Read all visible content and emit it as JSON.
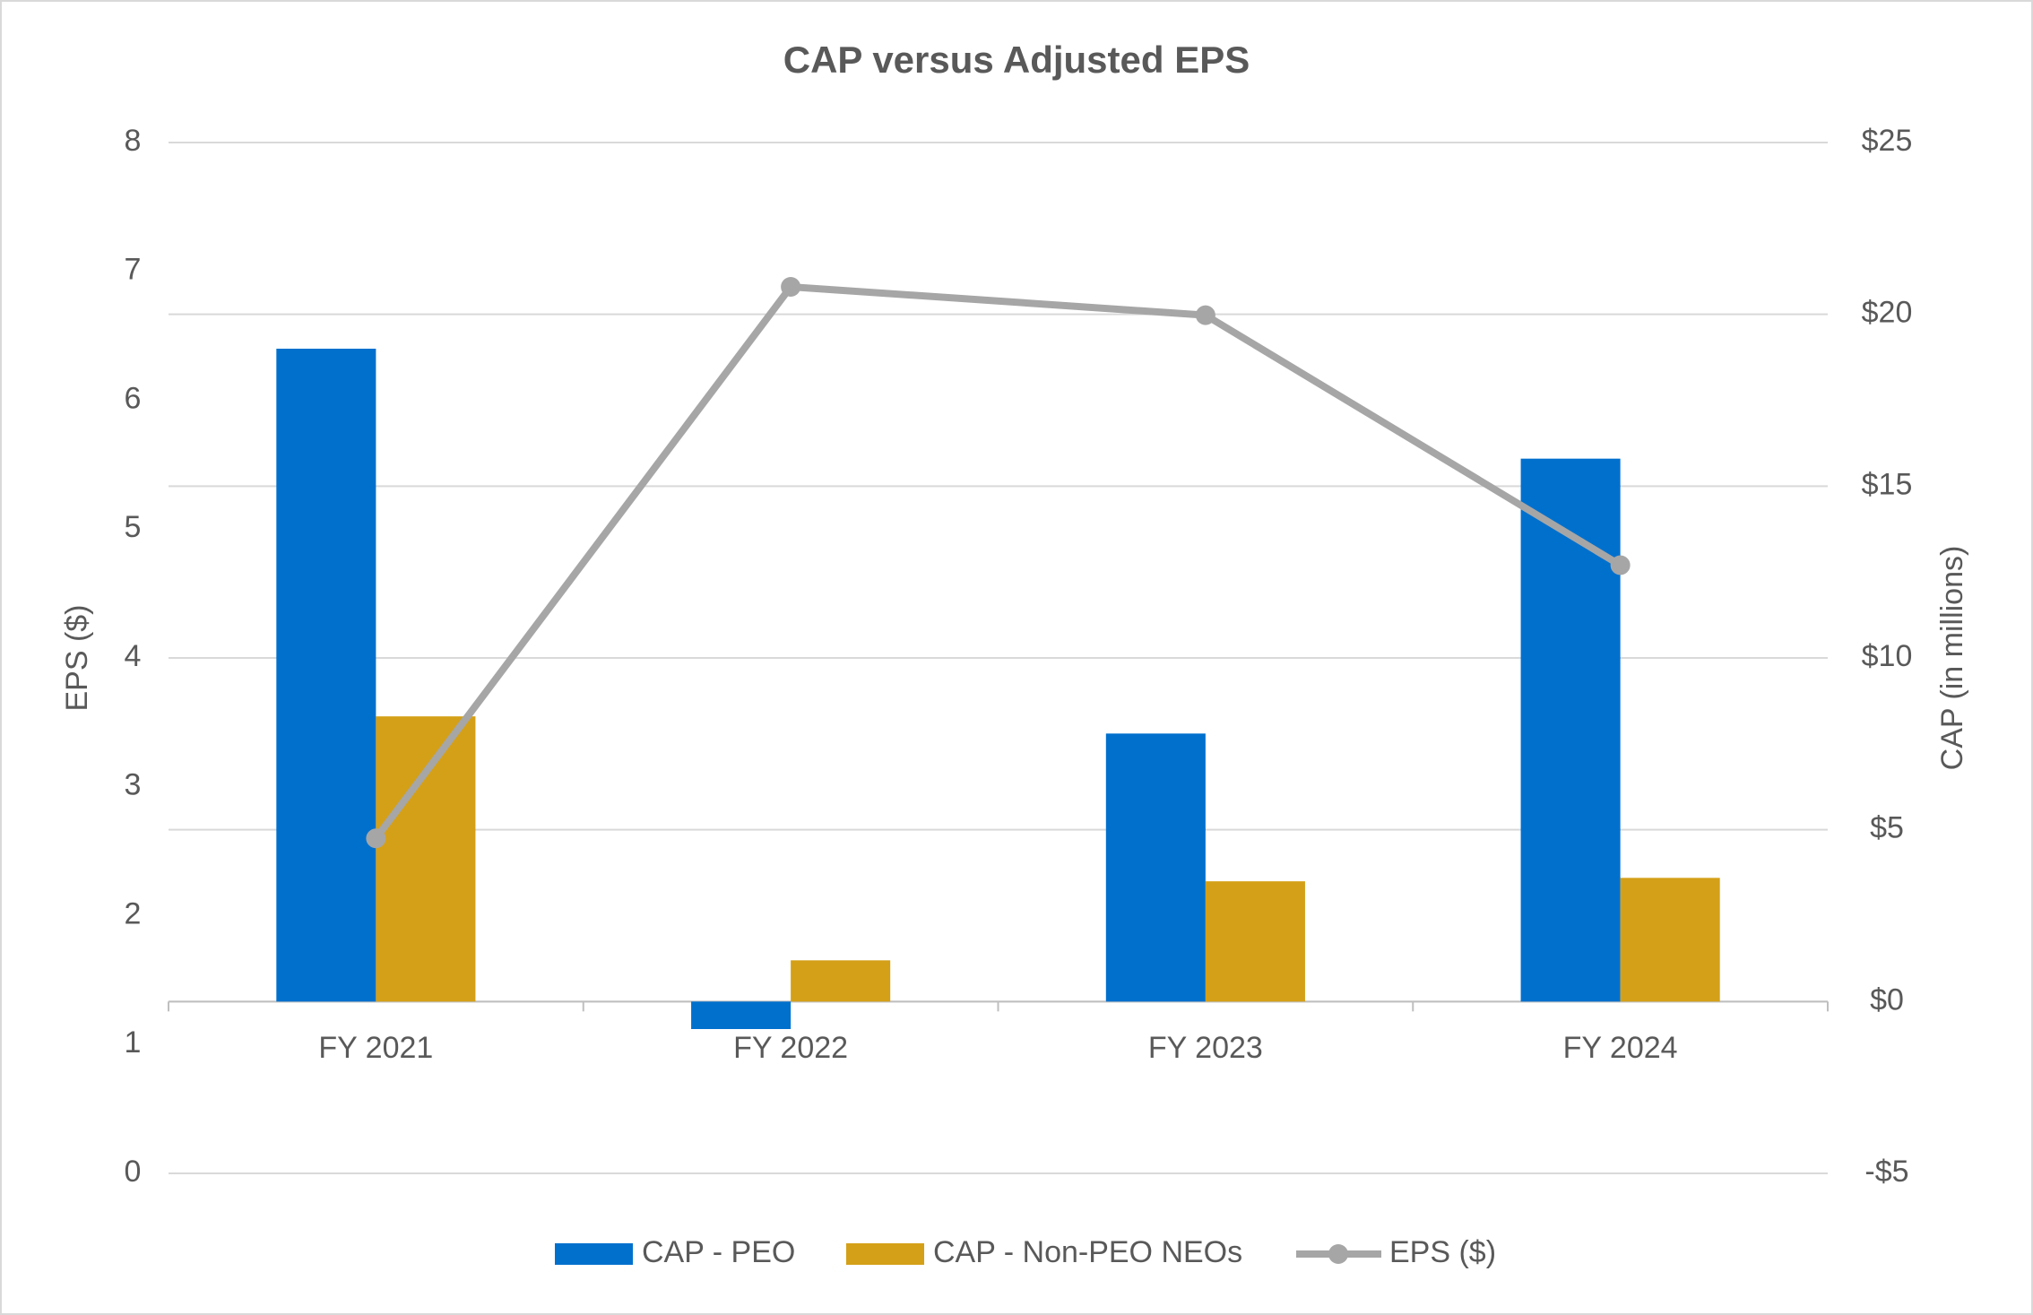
{
  "chart_data": {
    "type": "bar_line",
    "title": "CAP versus Adjusted EPS",
    "ylabel": "EPS ($)",
    "y2label": "CAP (in millions)",
    "categories": [
      "FY 2021",
      "FY 2022",
      "FY 2023",
      "FY 2024"
    ],
    "series": [
      {
        "name": "CAP - PEO",
        "type": "bar",
        "axis": "y2",
        "color": "#0070cd",
        "values": [
          19.0,
          -0.8,
          7.8,
          15.8
        ]
      },
      {
        "name": "CAP - Non-PEO NEOs",
        "type": "bar",
        "axis": "y2",
        "color": "#d4a017",
        "values": [
          8.3,
          1.2,
          3.5,
          3.6
        ]
      },
      {
        "name": "EPS ($)",
        "type": "line",
        "axis": "y",
        "color": "#a6a6a6",
        "values": [
          2.6,
          6.88,
          6.66,
          4.72
        ]
      }
    ],
    "ylim": [
      0,
      8
    ],
    "yticks": [
      0,
      1,
      2,
      3,
      4,
      5,
      6,
      7,
      8
    ],
    "y2lim": [
      -5,
      25
    ],
    "y2ticks": [
      {
        "value": -5,
        "label": "-$5"
      },
      {
        "value": 0,
        "label": "$0"
      },
      {
        "value": 5,
        "label": "$5"
      },
      {
        "value": 10,
        "label": "$10"
      },
      {
        "value": 15,
        "label": "$15"
      },
      {
        "value": 20,
        "label": "$20"
      },
      {
        "value": 25,
        "label": "$25"
      }
    ],
    "grid": true,
    "legend": "bottom"
  }
}
